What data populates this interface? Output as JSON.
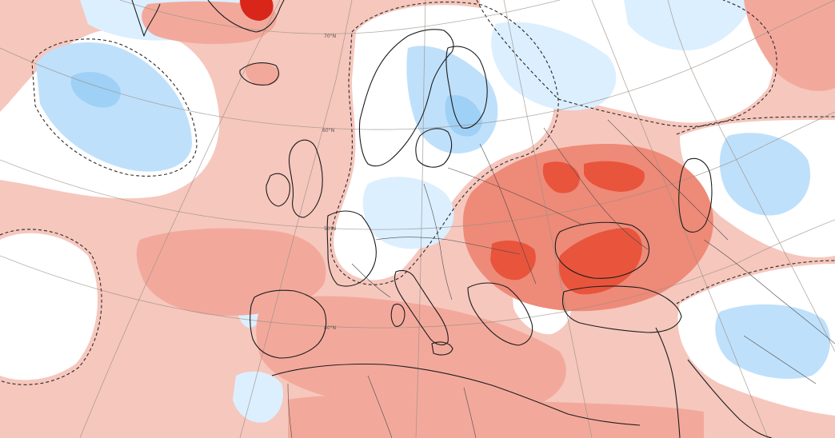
{
  "colors": {
    "base": "#f6c7bd",
    "warm_light": "#f2a99c",
    "warm_mid": "#ee8a78",
    "warm_strong": "#e8553c",
    "warm_extreme": "#d8261a",
    "neutral": "#ffffff",
    "cool_light": "#dcefff",
    "cool_mid": "#bfe0fb",
    "cool_strong": "#9fd0f5"
  },
  "graticule_labels": [
    "70°N",
    "60°N",
    "50°N",
    "40°N"
  ]
}
